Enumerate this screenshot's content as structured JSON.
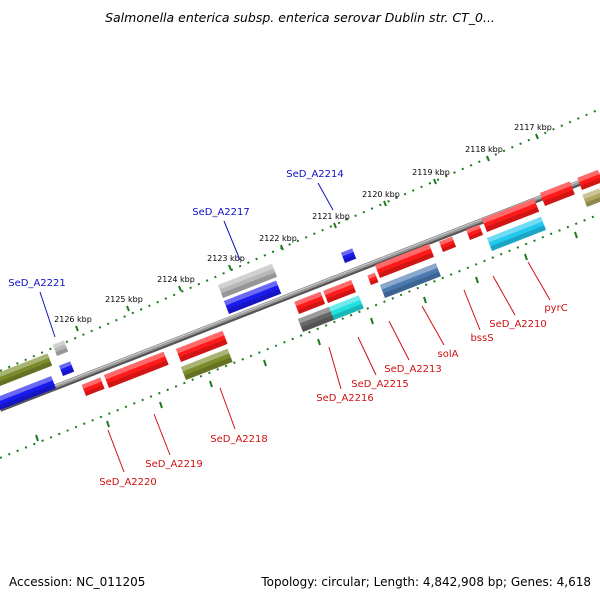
{
  "title": "Salmonella enterica subsp. enterica serovar Dublin str. CT_0...",
  "footer": {
    "accession": "Accession: NC_011205",
    "summary": "Topology: circular; Length: 4,842,908 bp; Genes: 4,618"
  },
  "colors": {
    "backbone": "#8a8a8a",
    "tick": "#1e7a1e",
    "forward_label": "#1010c0",
    "reverse_label": "#d01010",
    "red": "#ff1a1a",
    "blue": "#1a1aee",
    "olive": "#7a8c2a",
    "silver": "#b8b8b8",
    "cyan": "#20e0e0",
    "skyblue": "#22c8ee",
    "steelblue": "#4a7ab0",
    "darkgray": "#666666",
    "khaki": "#b0a860"
  },
  "ticks": [
    "2117 kbp",
    "2118 kbp",
    "2119 kbp",
    "2120 kbp",
    "2121 kbp",
    "2122 kbp",
    "2123 kbp",
    "2124 kbp",
    "2125 kbp",
    "2126 kbp"
  ],
  "labels": {
    "forward": [
      "SeD_A2214",
      "SeD_A2217",
      "SeD_A2221"
    ],
    "reverse": [
      "pyrC",
      "SeD_A2210",
      "bssS",
      "solA",
      "SeD_A2213",
      "SeD_A2215",
      "SeD_A2216",
      "SeD_A2218",
      "SeD_A2219",
      "SeD_A2220"
    ]
  }
}
